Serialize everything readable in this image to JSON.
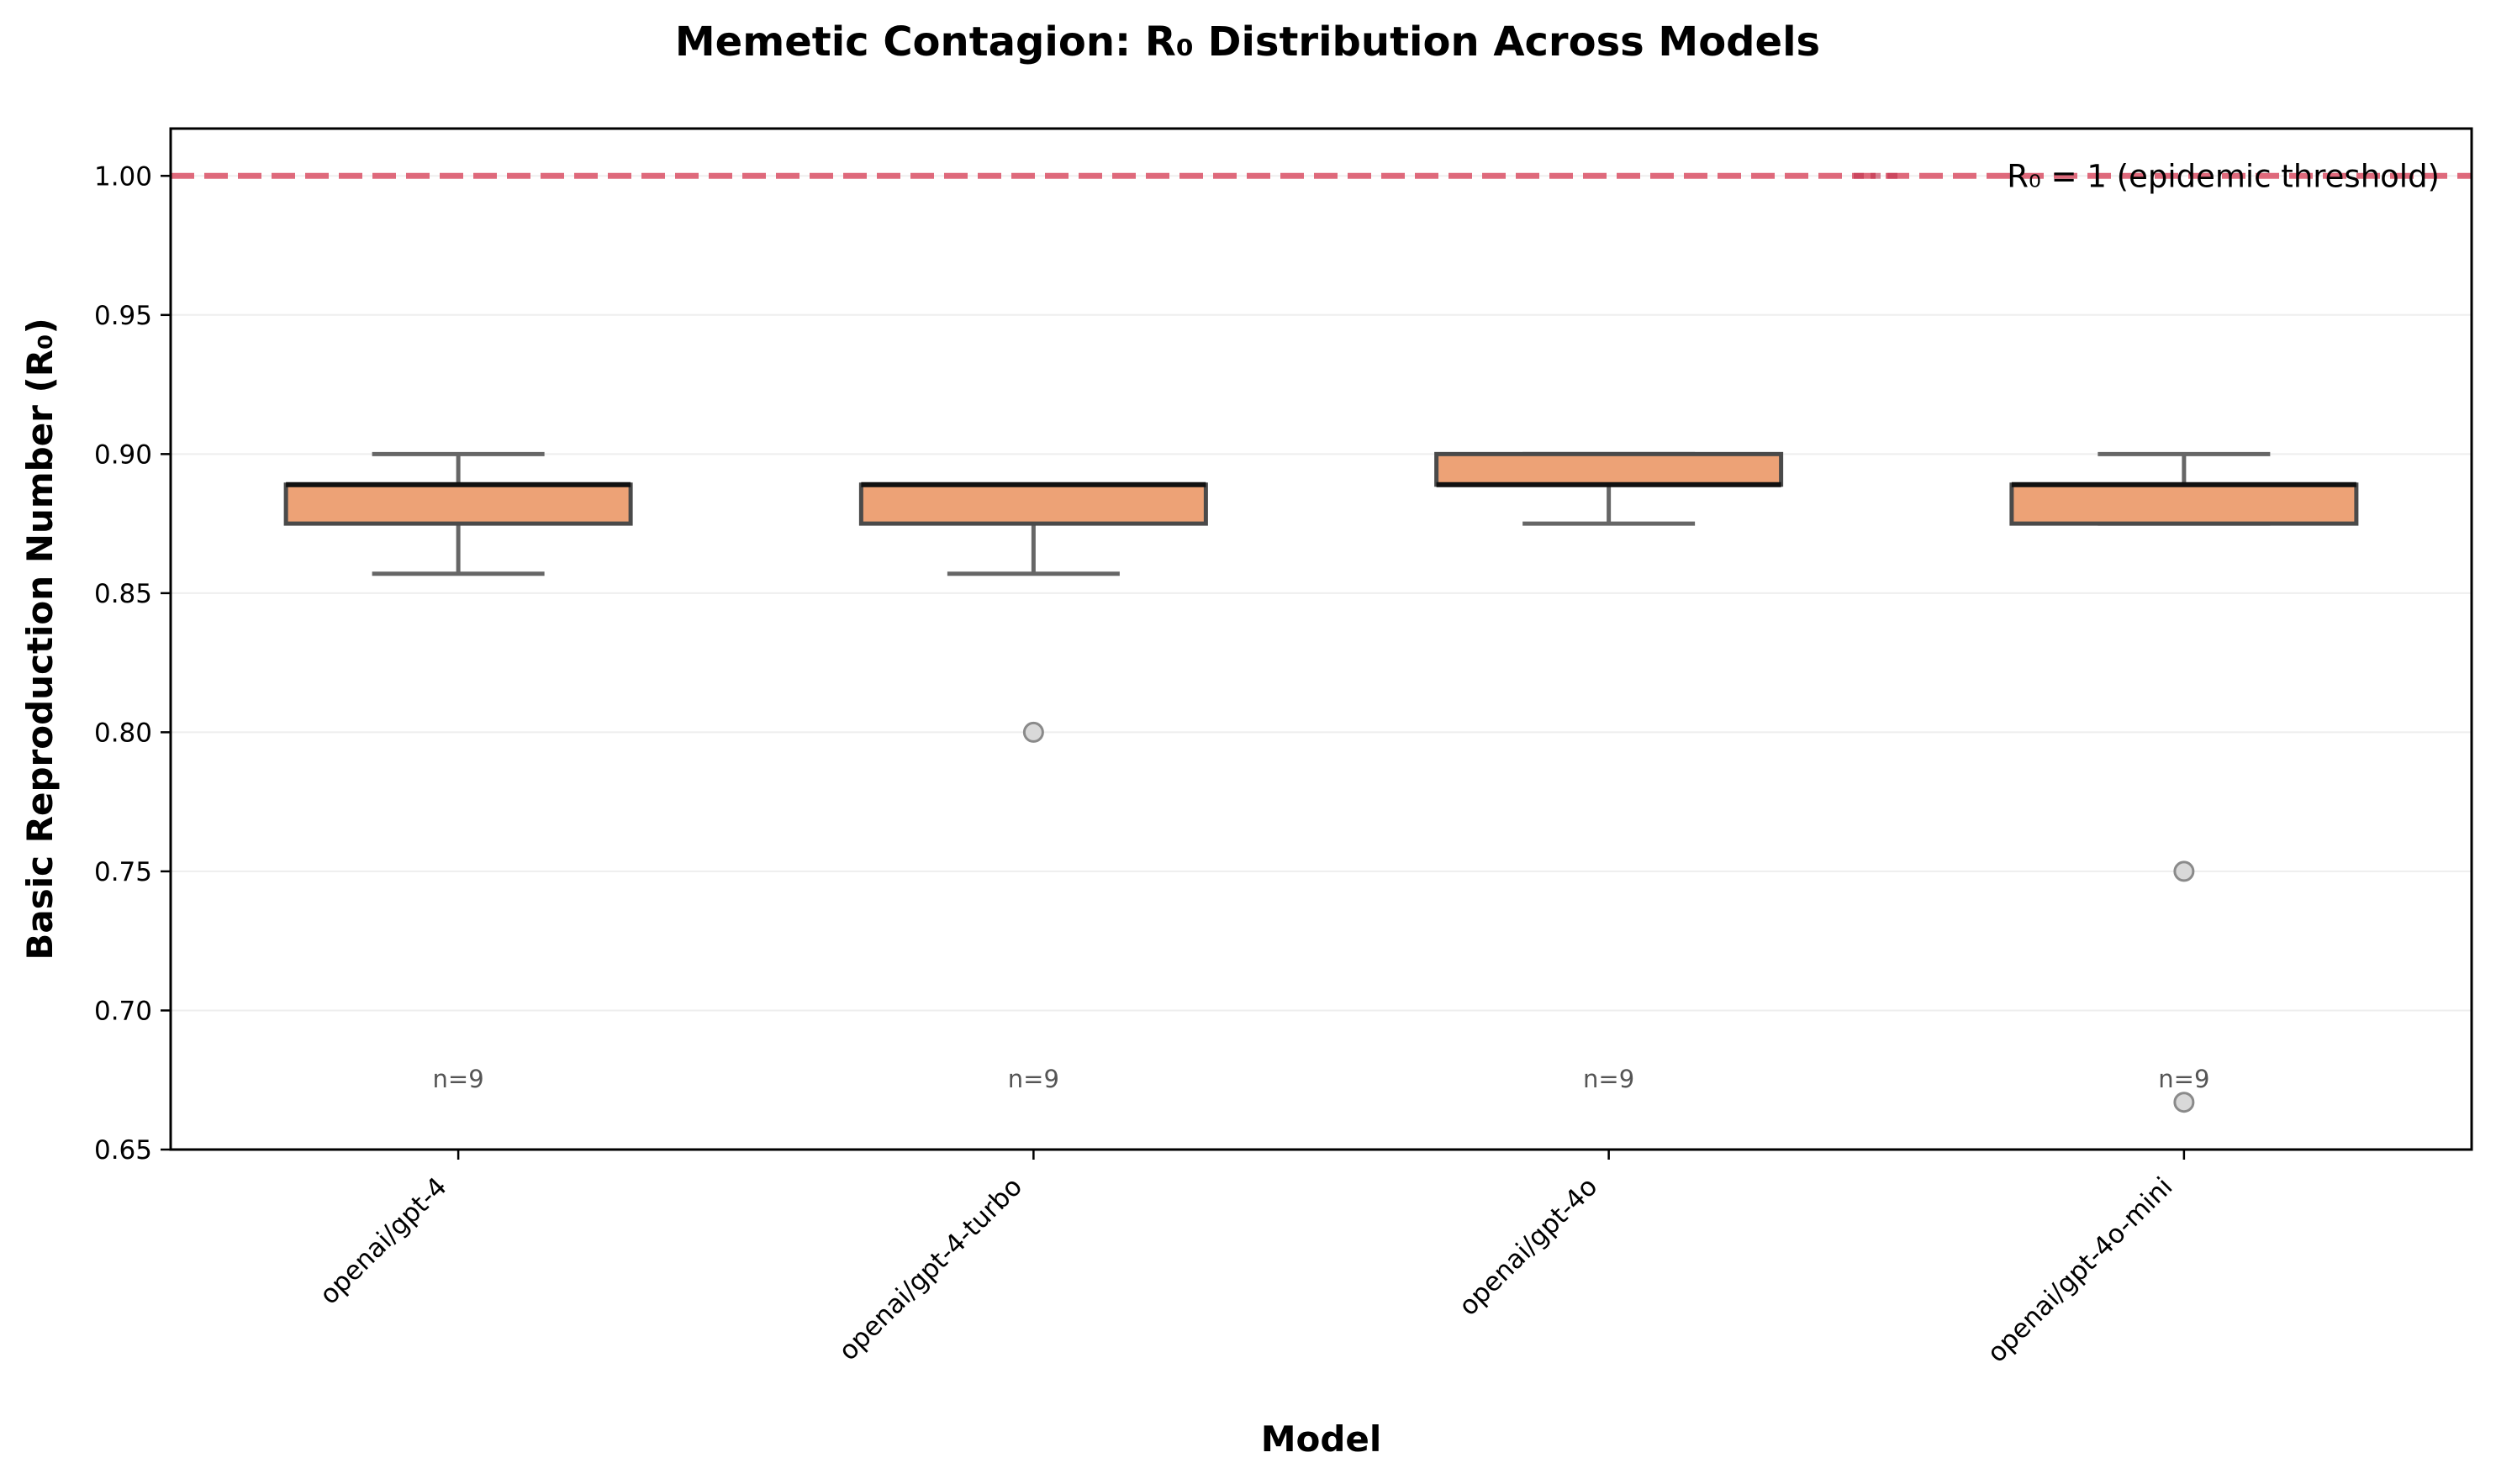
{
  "chart_data": {
    "type": "box",
    "title": "Memetic Contagion: R₀ Distribution Across Models",
    "xlabel": "Model",
    "ylabel": "Basic Reproduction Number (R₀)",
    "ylim": [
      0.65,
      1.017
    ],
    "yticks": [
      "0.65",
      "0.70",
      "0.75",
      "0.80",
      "0.85",
      "0.90",
      "0.95",
      "1.00"
    ],
    "categories": [
      "openai/gpt-4",
      "openai/gpt-4-turbo",
      "openai/gpt-4o",
      "openai/gpt-4o-mini"
    ],
    "boxes": [
      {
        "name": "openai/gpt-4",
        "whisker_low": 0.857,
        "q1": 0.875,
        "median": 0.889,
        "q3": 0.889,
        "whisker_high": 0.9,
        "outliers": [],
        "n_label": "n=9"
      },
      {
        "name": "openai/gpt-4-turbo",
        "whisker_low": 0.857,
        "q1": 0.875,
        "median": 0.889,
        "q3": 0.889,
        "whisker_high": 0.889,
        "outliers": [
          0.8
        ],
        "n_label": "n=9"
      },
      {
        "name": "openai/gpt-4o",
        "whisker_low": 0.875,
        "q1": 0.889,
        "median": 0.889,
        "q3": 0.9,
        "whisker_high": 0.9,
        "outliers": [],
        "n_label": "n=9"
      },
      {
        "name": "openai/gpt-4o-mini",
        "whisker_low": 0.875,
        "q1": 0.875,
        "median": 0.889,
        "q3": 0.889,
        "whisker_high": 0.9,
        "outliers": [
          0.75,
          0.667
        ],
        "n_label": "n=9"
      }
    ],
    "threshold": {
      "value": 1.0,
      "label": "R₀ = 1 (epidemic threshold)"
    },
    "grid": "y",
    "legend_position": "top-right",
    "colors": {
      "box_fill": "#eda276",
      "box_edge": "#4a4a4a",
      "median": "#111111",
      "whisker": "#666666",
      "outlier_fill": "#d9d9d9",
      "outlier_edge": "#8a8a8a",
      "threshold": "#dc5a6e",
      "grid": "#eeeeee"
    }
  }
}
